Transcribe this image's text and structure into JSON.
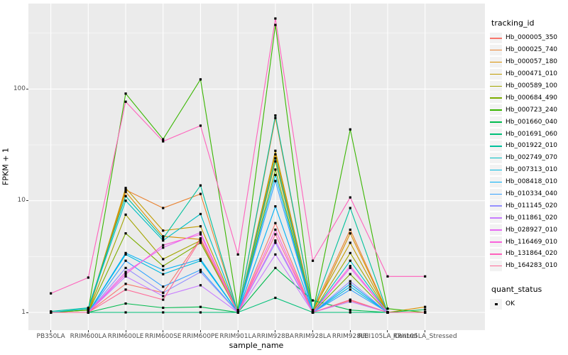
{
  "figure": {
    "background": "#FFFFFF",
    "panel_background": "#EBEBEB",
    "grid_color": "#FFFFFF",
    "tick_label_color": "#4D4D4D",
    "point_color": "#000000"
  },
  "axes": {
    "x_title": "sample_name",
    "y_title": "FPKM + 1"
  },
  "legend": {
    "tracking_title": "tracking_id",
    "quant_title": "quant_status",
    "quant_ok_label": "OK"
  },
  "chart_data": {
    "type": "line",
    "title": "",
    "xlabel": "sample_name",
    "ylabel": "FPKM + 1",
    "y_scale": "log10",
    "ylim": [
      0.82,
      530
    ],
    "y_ticks": [
      1,
      10,
      100
    ],
    "y_minor_ticks": [
      3.162,
      31.62,
      316.2
    ],
    "grid": true,
    "legend_position": "right",
    "point_shape": "square",
    "point_color": "#000000",
    "quant_status_all": "OK",
    "categories": [
      "PB350LA",
      "RRIM600LA",
      "RRIM600LE",
      "RRIM600SE",
      "RRIM600PE",
      "RRIM901LA",
      "RRIM928BA",
      "RRIM928LA",
      "RRIM928LE",
      "RRII105LA_Control",
      "RRII105LA_Stressed"
    ],
    "series": [
      {
        "name": "Hb_000005_350",
        "color": "#F8766D",
        "values": [
          1.0,
          1.0,
          1.8,
          1.5,
          4.6,
          1.0,
          6.3,
          1.0,
          1.28,
          1.0,
          1.0
        ]
      },
      {
        "name": "Hb_000025_740",
        "color": "#EA8331",
        "values": [
          1.0,
          1.05,
          12.5,
          8.6,
          11.5,
          1.0,
          55,
          1.05,
          5.5,
          1.0,
          1.0
        ]
      },
      {
        "name": "Hb_000057_180",
        "color": "#D89000",
        "values": [
          1.0,
          1.0,
          12.0,
          4.8,
          4.5,
          1.0,
          26,
          1.0,
          5.1,
          1.0,
          1.12
        ]
      },
      {
        "name": "Hb_000471_010",
        "color": "#C09B00",
        "values": [
          1.0,
          1.05,
          13.0,
          5.4,
          5.9,
          1.0,
          28,
          1.05,
          4.2,
          1.0,
          1.0
        ]
      },
      {
        "name": "Hb_000589_100",
        "color": "#A3A500",
        "values": [
          1.0,
          1.0,
          7.5,
          3.0,
          4.4,
          1.0,
          22.5,
          1.0,
          3.4,
          1.0,
          1.0
        ]
      },
      {
        "name": "Hb_000684_490",
        "color": "#7CAE00",
        "values": [
          1.0,
          1.0,
          5.1,
          2.6,
          4.2,
          1.0,
          19,
          1.0,
          2.2,
          1.0,
          1.0
        ]
      },
      {
        "name": "Hb_000723_240",
        "color": "#39B600",
        "values": [
          1.0,
          1.05,
          91,
          35.5,
          122,
          1.05,
          375,
          1.0,
          43.5,
          1.08,
          1.0
        ]
      },
      {
        "name": "Hb_001660_040",
        "color": "#00BB4E",
        "values": [
          1.0,
          1.0,
          1.2,
          1.1,
          1.12,
          1.0,
          2.5,
          1.28,
          1.05,
          1.0,
          1.06
        ]
      },
      {
        "name": "Hb_001691_060",
        "color": "#00C079",
        "values": [
          1.0,
          1.0,
          1.0,
          1.0,
          1.0,
          1.0,
          1.35,
          1.0,
          1.0,
          1.0,
          1.0
        ]
      },
      {
        "name": "Hb_001922_010",
        "color": "#00C19C",
        "values": [
          1.02,
          1.1,
          11.0,
          4.6,
          13.7,
          1.0,
          58,
          1.05,
          8.6,
          1.0,
          1.0
        ]
      },
      {
        "name": "Hb_002749_070",
        "color": "#00BFC4",
        "values": [
          1.0,
          1.08,
          10.0,
          4.4,
          7.6,
          1.0,
          24,
          1.0,
          2.9,
          1.0,
          1.0
        ]
      },
      {
        "name": "Hb_007313_010",
        "color": "#00BAE0",
        "values": [
          1.0,
          1.0,
          3.3,
          2.2,
          2.9,
          1.0,
          17,
          1.0,
          1.7,
          1.0,
          1.0
        ]
      },
      {
        "name": "Hb_008418_010",
        "color": "#00B0F6",
        "values": [
          1.0,
          1.0,
          3.4,
          2.4,
          3.0,
          1.0,
          8.9,
          1.0,
          1.8,
          1.0,
          1.0
        ]
      },
      {
        "name": "Hb_010334_040",
        "color": "#35A2FF",
        "values": [
          1.0,
          1.0,
          2.9,
          1.7,
          2.4,
          1.0,
          15,
          1.0,
          1.6,
          1.0,
          1.0
        ]
      },
      {
        "name": "Hb_011145_020",
        "color": "#9590FF",
        "values": [
          1.0,
          1.0,
          2.5,
          1.5,
          2.3,
          1.0,
          4.2,
          1.0,
          1.9,
          1.0,
          1.0
        ]
      },
      {
        "name": "Hb_011861_020",
        "color": "#C77CFF",
        "values": [
          1.0,
          1.0,
          2.1,
          1.4,
          1.75,
          1.0,
          3.3,
          1.0,
          1.25,
          1.0,
          1.0
        ]
      },
      {
        "name": "Hb_028927_010",
        "color": "#E76BF3",
        "values": [
          1.0,
          1.0,
          2.3,
          3.8,
          5.2,
          1.0,
          4.4,
          1.0,
          2.5,
          1.0,
          1.0
        ]
      },
      {
        "name": "Hb_116469_010",
        "color": "#FA62DB",
        "values": [
          1.0,
          1.0,
          2.2,
          4.0,
          5.0,
          1.0,
          5.5,
          1.0,
          2.6,
          1.0,
          1.0
        ]
      },
      {
        "name": "Hb_131864_020",
        "color": "#FF62BC",
        "values": [
          1.48,
          2.05,
          77,
          34,
          47,
          3.3,
          428,
          2.9,
          10.7,
          2.1,
          2.1
        ]
      },
      {
        "name": "Hb_164283_010",
        "color": "#FF6A98",
        "values": [
          1.0,
          1.0,
          1.6,
          1.3,
          4.5,
          1.0,
          5.0,
          1.0,
          1.3,
          1.0,
          1.0
        ]
      }
    ]
  }
}
